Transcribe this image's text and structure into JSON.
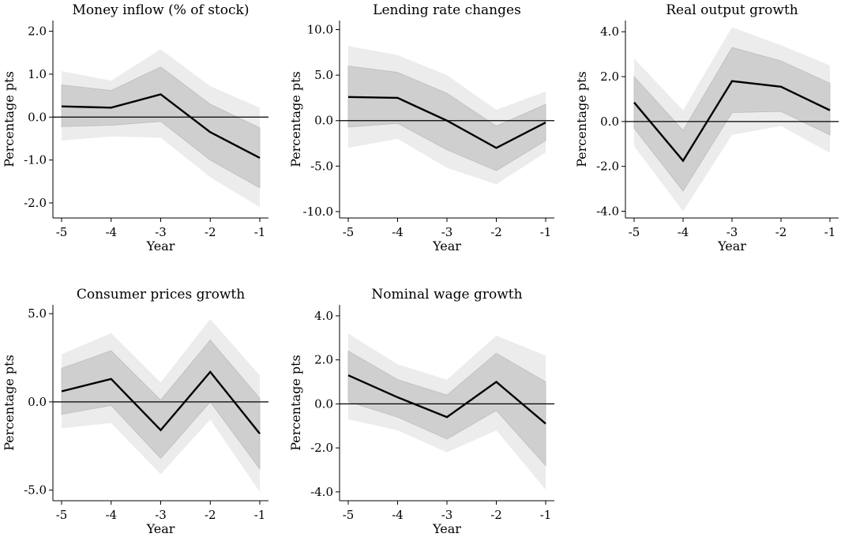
{
  "chart_data": [
    {
      "type": "line",
      "title": "Money inflow (% of stock)",
      "xlabel": "Year",
      "ylabel": "Percentage pts",
      "x": [
        -5,
        -4,
        -3,
        -2,
        -1
      ],
      "xticklabels": [
        "-5",
        "-4",
        "-3",
        "-2",
        "-1"
      ],
      "ylim": [
        -2.35,
        2.25
      ],
      "yticks": [
        2,
        1,
        0,
        -1,
        -2
      ],
      "yticklabels": [
        "2.0",
        "1.0",
        "0.0",
        "-1.0",
        "-2.0"
      ],
      "reference_line": 0,
      "series": [
        {
          "role": "estimate",
          "values": [
            0.25,
            0.22,
            0.53,
            -0.35,
            -0.95
          ]
        },
        {
          "role": "inner_band",
          "lower": [
            -0.22,
            -0.19,
            -0.1,
            -1.0,
            -1.65
          ],
          "upper": [
            0.75,
            0.62,
            1.17,
            0.3,
            -0.25
          ]
        },
        {
          "role": "outer_band",
          "lower": [
            -0.55,
            -0.45,
            -0.48,
            -1.4,
            -2.1
          ],
          "upper": [
            1.07,
            0.85,
            1.58,
            0.72,
            0.22
          ]
        }
      ],
      "colors": {
        "line": "#000000",
        "inner_band": "#cfcfcf",
        "outer_band": "#ececec"
      },
      "grid": false
    },
    {
      "type": "line",
      "title": "Lending rate changes",
      "xlabel": "Year",
      "ylabel": "Percentage pts",
      "x": [
        -5,
        -4,
        -3,
        -2,
        -1
      ],
      "xticklabels": [
        "-5",
        "-4",
        "-3",
        "-2",
        "-1"
      ],
      "ylim": [
        -10.7,
        11.0
      ],
      "yticks": [
        10,
        5,
        0,
        -5,
        -10
      ],
      "yticklabels": [
        "10.0",
        "5.0",
        "0.0",
        "-5.0",
        "-10.0"
      ],
      "reference_line": 0,
      "series": [
        {
          "role": "estimate",
          "values": [
            2.6,
            2.5,
            0.0,
            -3.0,
            -0.2
          ]
        },
        {
          "role": "inner_band",
          "lower": [
            -0.7,
            -0.3,
            -3.2,
            -5.5,
            -2.2
          ],
          "upper": [
            6.0,
            5.3,
            3.0,
            -0.6,
            1.8
          ]
        },
        {
          "role": "outer_band",
          "lower": [
            -3.0,
            -2.0,
            -5.2,
            -7.0,
            -3.5
          ],
          "upper": [
            8.2,
            7.2,
            5.0,
            1.2,
            3.2
          ]
        }
      ],
      "colors": {
        "line": "#000000",
        "inner_band": "#cfcfcf",
        "outer_band": "#ececec"
      },
      "grid": false
    },
    {
      "type": "line",
      "title": "Real output growth",
      "xlabel": "Year",
      "ylabel": "Percentage pts",
      "x": [
        -5,
        -4,
        -3,
        -2,
        -1
      ],
      "xticklabels": [
        "-5",
        "-4",
        "-3",
        "-2",
        "-1"
      ],
      "ylim": [
        -4.3,
        4.5
      ],
      "yticks": [
        4,
        2,
        0,
        -2,
        -4
      ],
      "yticklabels": [
        "4.0",
        "2.0",
        "0.0",
        "-2.0",
        "-4.0"
      ],
      "reference_line": 0,
      "series": [
        {
          "role": "estimate",
          "values": [
            0.85,
            -1.75,
            1.8,
            1.55,
            0.5
          ]
        },
        {
          "role": "inner_band",
          "lower": [
            -0.3,
            -3.1,
            0.4,
            0.45,
            -0.6
          ],
          "upper": [
            2.0,
            -0.4,
            3.3,
            2.7,
            1.7
          ]
        },
        {
          "role": "outer_band",
          "lower": [
            -1.1,
            -4.0,
            -0.6,
            -0.2,
            -1.4
          ],
          "upper": [
            2.8,
            0.5,
            4.2,
            3.4,
            2.5
          ]
        }
      ],
      "colors": {
        "line": "#000000",
        "inner_band": "#cfcfcf",
        "outer_band": "#ececec"
      },
      "grid": false
    },
    {
      "type": "line",
      "title": "Consumer prices growth",
      "xlabel": "Year",
      "ylabel": "Percentage pts",
      "x": [
        -5,
        -4,
        -3,
        -2,
        -1
      ],
      "xticklabels": [
        "-5",
        "-4",
        "-3",
        "-2",
        "-1"
      ],
      "ylim": [
        -5.6,
        5.5
      ],
      "yticks": [
        5,
        0,
        -5
      ],
      "yticklabels": [
        "5.0",
        "0.0",
        "-5.0"
      ],
      "reference_line": 0,
      "series": [
        {
          "role": "estimate",
          "values": [
            0.6,
            1.3,
            -1.6,
            1.7,
            -1.8
          ]
        },
        {
          "role": "inner_band",
          "lower": [
            -0.7,
            -0.2,
            -3.2,
            0.0,
            -3.8
          ],
          "upper": [
            1.9,
            2.9,
            0.1,
            3.5,
            0.2
          ]
        },
        {
          "role": "outer_band",
          "lower": [
            -1.5,
            -1.2,
            -4.1,
            -1.0,
            -5.1
          ],
          "upper": [
            2.7,
            3.9,
            1.1,
            4.7,
            1.5
          ]
        }
      ],
      "colors": {
        "line": "#000000",
        "inner_band": "#cfcfcf",
        "outer_band": "#ececec"
      },
      "grid": false
    },
    {
      "type": "line",
      "title": "Nominal wage growth",
      "xlabel": "Year",
      "ylabel": "Percentage pts",
      "x": [
        -5,
        -4,
        -3,
        -2,
        -1
      ],
      "xticklabels": [
        "-5",
        "-4",
        "-3",
        "-2",
        "-1"
      ],
      "ylim": [
        -4.4,
        4.5
      ],
      "yticks": [
        4,
        2,
        0,
        -2,
        -4
      ],
      "yticklabels": [
        "4.0",
        "2.0",
        "0.0",
        "-2.0",
        "-4.0"
      ],
      "reference_line": 0,
      "series": [
        {
          "role": "estimate",
          "values": [
            1.3,
            0.3,
            -0.6,
            1.0,
            -0.9
          ]
        },
        {
          "role": "inner_band",
          "lower": [
            0.1,
            -0.6,
            -1.6,
            -0.3,
            -2.8
          ],
          "upper": [
            2.4,
            1.1,
            0.4,
            2.3,
            1.0
          ]
        },
        {
          "role": "outer_band",
          "lower": [
            -0.7,
            -1.2,
            -2.2,
            -1.2,
            -3.9
          ],
          "upper": [
            3.2,
            1.8,
            1.1,
            3.1,
            2.2
          ]
        }
      ],
      "colors": {
        "line": "#000000",
        "inner_band": "#cfcfcf",
        "outer_band": "#ececec"
      },
      "grid": false
    }
  ]
}
